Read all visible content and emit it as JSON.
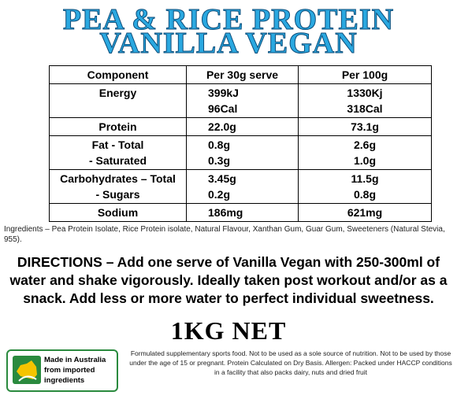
{
  "header": {
    "title_lines": [
      "PEA & RICE PROTEIN",
      "VANILLA VEGAN"
    ]
  },
  "table": {
    "columns": [
      "Component",
      "Per 30g serve",
      "Per 100g"
    ],
    "rows": [
      [
        [
          "Energy"
        ],
        [
          "399kJ",
          "96Cal"
        ],
        [
          "1330Kj",
          "318Cal"
        ]
      ],
      [
        [
          "Protein"
        ],
        [
          "22.0g"
        ],
        [
          "73.1g"
        ]
      ],
      [
        [
          "Fat - Total",
          "- Saturated"
        ],
        [
          "0.8g",
          "0.3g"
        ],
        [
          "2.6g",
          "1.0g"
        ]
      ],
      [
        [
          "Carbohydrates – Total",
          "- Sugars"
        ],
        [
          "3.45g",
          "0.2g"
        ],
        [
          "11.5g",
          "0.8g"
        ]
      ],
      [
        [
          "Sodium"
        ],
        [
          "186mg"
        ],
        [
          "621mg"
        ]
      ]
    ]
  },
  "ingredients": "Ingredients – Pea Protein Isolate, Rice Protein isolate, Natural Flavour, Xanthan Gum, Guar Gum, Sweeteners (Natural Stevia, 955).",
  "directions": "DIRECTIONS – Add one serve of Vanilla Vegan with 250-300ml of water and shake vigorously.  Ideally taken post workout and/or as a snack. Add less or more water to perfect individual sweetness.",
  "net": "1KG NET",
  "badge": {
    "lines": [
      "Made in Australia",
      "from imported",
      "ingredients"
    ]
  },
  "footnote": "Formulated supplementary sports food. Not to be used as a sole source of nutrition. Not to be used by those under the age of 15 or pregnant. Protein Calculated on Dry Basis. Allergen: Packed under HACCP conditions in a facility that also packs dairy, nuts and dried fruit"
}
